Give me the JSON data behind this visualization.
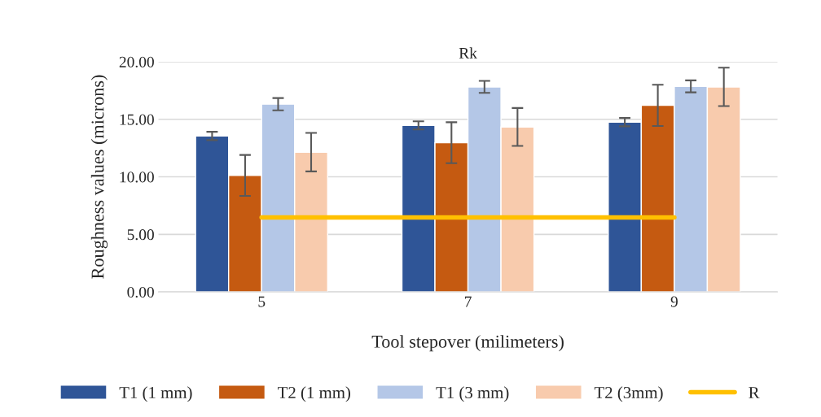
{
  "chart_data": {
    "type": "bar",
    "title": "Rk",
    "xlabel": "Tool stepover (milimeters)",
    "ylabel": "Roughness values (microns)",
    "categories": [
      "5",
      "7",
      "9"
    ],
    "series": [
      {
        "name": "T1 (1 mm)",
        "color": "#2f5597",
        "values": [
          13.55,
          14.47,
          14.75
        ],
        "errors": [
          0.36,
          0.35,
          0.36
        ]
      },
      {
        "name": "T2 (1 mm)",
        "color": "#c55a11",
        "values": [
          10.12,
          12.96,
          16.21
        ],
        "errors": [
          1.78,
          1.78,
          1.79
        ]
      },
      {
        "name": "T1 (3 mm)",
        "color": "#b4c7e7",
        "values": [
          16.31,
          17.81,
          17.86
        ],
        "errors": [
          0.53,
          0.52,
          0.52
        ]
      },
      {
        "name": "T2 (3mm)",
        "color": "#f8cbad",
        "values": [
          12.14,
          14.33,
          17.81
        ],
        "errors": [
          1.67,
          1.65,
          1.67
        ]
      },
      {
        "name": "R",
        "type": "line",
        "color": "#ffc000",
        "values": [
          6.47,
          6.47,
          6.47
        ]
      }
    ],
    "ylim": [
      0,
      20
    ],
    "yticks": [
      {
        "value": 0,
        "label": "0.00"
      },
      {
        "value": 5,
        "label": "5.00"
      },
      {
        "value": 10,
        "label": "10.00"
      },
      {
        "value": 15,
        "label": "15.00"
      },
      {
        "value": 20,
        "label": "20.00"
      }
    ],
    "grid": "y",
    "legend": "bottom"
  }
}
